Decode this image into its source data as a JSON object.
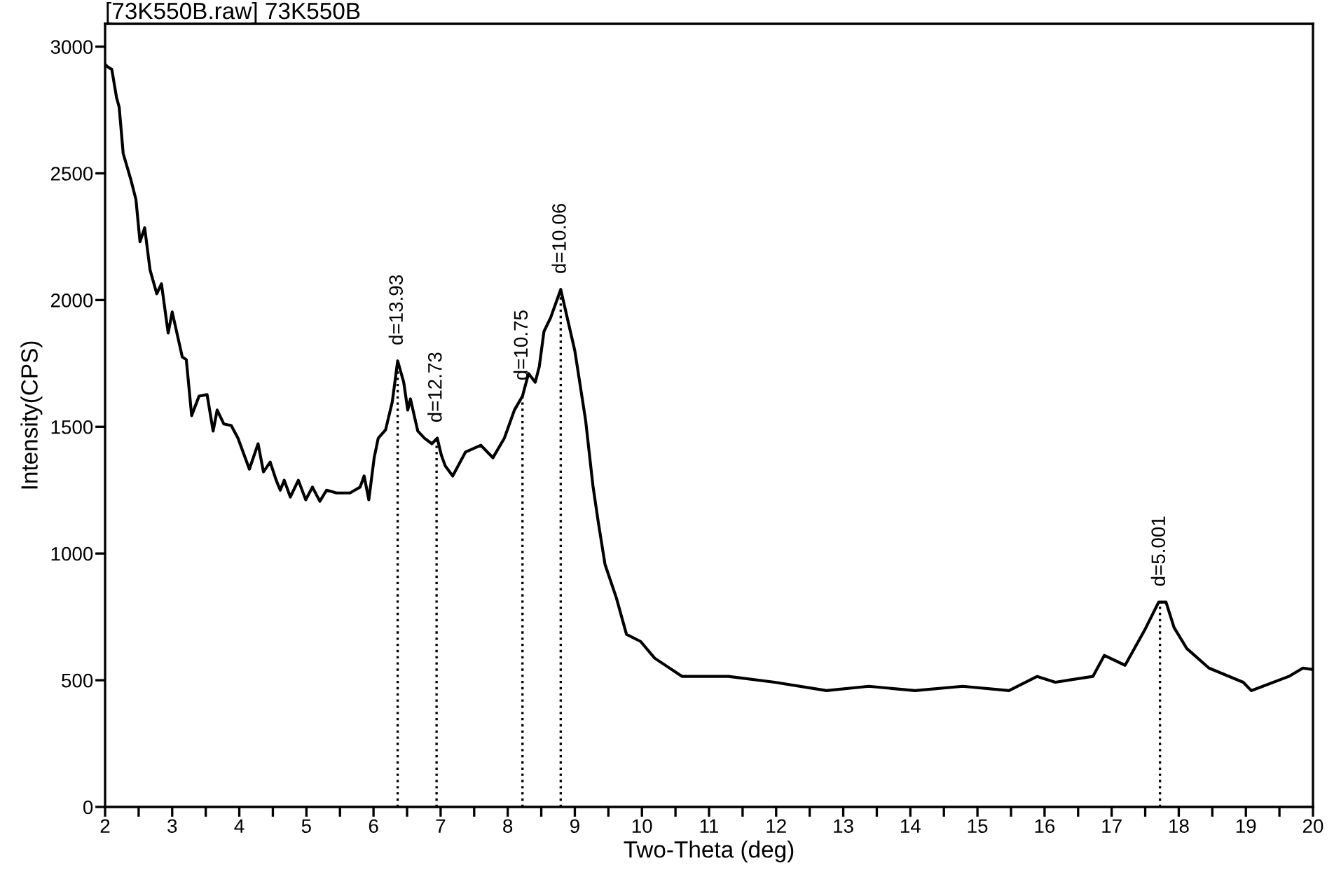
{
  "chart_data": {
    "type": "line",
    "title": "[73K550B.raw] 73K550B",
    "xlabel": "Two-Theta (deg)",
    "ylabel": "Intensity(CPS)",
    "x": [
      2.0,
      2.04,
      2.1,
      2.17,
      2.21,
      2.27,
      2.38,
      2.46,
      2.52,
      2.59,
      2.67,
      2.77,
      2.84,
      2.94,
      3.0,
      3.15,
      3.21,
      3.29,
      3.4,
      3.52,
      3.61,
      3.67,
      3.77,
      3.88,
      3.98,
      4.15,
      4.28,
      4.36,
      4.46,
      4.55,
      4.61,
      4.67,
      4.76,
      4.88,
      4.99,
      5.09,
      5.2,
      5.3,
      5.45,
      5.65,
      5.8,
      5.86,
      5.93,
      6.01,
      6.07,
      6.18,
      6.28,
      6.36,
      6.45,
      6.51,
      6.55,
      6.66,
      6.76,
      6.87,
      6.95,
      7.01,
      7.07,
      7.18,
      7.37,
      7.6,
      7.78,
      7.95,
      8.1,
      8.22,
      8.31,
      8.41,
      8.47,
      8.54,
      8.64,
      8.79,
      9.0,
      9.16,
      9.27,
      9.35,
      9.45,
      9.62,
      9.77,
      9.98,
      10.19,
      10.6,
      11.29,
      11.98,
      12.75,
      13.38,
      14.07,
      14.78,
      15.47,
      15.89,
      16.16,
      16.72,
      16.89,
      17.2,
      17.49,
      17.7,
      17.81,
      17.93,
      18.12,
      18.45,
      18.96,
      19.08,
      19.64,
      19.85,
      20.0
    ],
    "series": [
      {
        "color": "#000000",
        "values": [
          2930,
          2920,
          2910,
          2800,
          2761,
          2578,
          2479,
          2396,
          2230,
          2285,
          2119,
          2025,
          2064,
          1870,
          1953,
          1776,
          1765,
          1544,
          1621,
          1627,
          1483,
          1566,
          1511,
          1505,
          1455,
          1333,
          1433,
          1322,
          1361,
          1289,
          1250,
          1289,
          1223,
          1289,
          1212,
          1262,
          1206,
          1250,
          1239,
          1239,
          1262,
          1306,
          1212,
          1378,
          1455,
          1488,
          1599,
          1760,
          1676,
          1566,
          1610,
          1483,
          1455,
          1433,
          1455,
          1389,
          1345,
          1306,
          1400,
          1427,
          1378,
          1455,
          1566,
          1621,
          1710,
          1676,
          1737,
          1876,
          1931,
          2042,
          1800,
          1527,
          1267,
          1123,
          957,
          824,
          681,
          653,
          587,
          515,
          515,
          492,
          459,
          476,
          459,
          476,
          459,
          515,
          492,
          515,
          598,
          559,
          697,
          808,
          808,
          708,
          625,
          548,
          492,
          459,
          515,
          548,
          542
        ]
      }
    ],
    "xlim": [
      2,
      20
    ],
    "ylim": [
      0,
      3090
    ],
    "xticks": [
      2,
      {
        "value": 2.5,
        "label": null
      },
      3,
      {
        "value": 3.5,
        "label": null
      },
      4,
      {
        "value": 4.5,
        "label": null
      },
      5,
      {
        "value": 5.5,
        "label": null
      },
      6,
      {
        "value": 6.5,
        "label": null
      },
      7,
      {
        "value": 7.5,
        "label": null
      },
      8,
      {
        "value": 8.5,
        "label": null
      },
      9,
      {
        "value": 9.5,
        "label": null
      },
      10,
      {
        "value": 10.5,
        "label": null
      },
      11,
      {
        "value": 11.5,
        "label": null
      },
      12,
      {
        "value": 12.5,
        "label": null
      },
      13,
      {
        "value": 13.5,
        "label": null
      },
      14,
      {
        "value": 14.5,
        "label": null
      },
      15,
      {
        "value": 15.5,
        "label": null
      },
      16,
      {
        "value": 16.5,
        "label": null
      },
      17,
      {
        "value": 17.5,
        "label": null
      },
      18,
      {
        "value": 18.5,
        "label": null
      },
      19,
      {
        "value": 19.5,
        "label": null
      },
      20
    ],
    "yticks": [
      0,
      500,
      1000,
      1500,
      2000,
      2500,
      3000
    ],
    "annotations": [
      {
        "text": "d=13.93",
        "x": 6.36,
        "y": 1760
      },
      {
        "text": "d=12.73",
        "x": 6.94,
        "y": 1455
      },
      {
        "text": "d=10.75",
        "x": 8.22,
        "y": 1621
      },
      {
        "text": "d=10.06",
        "x": 8.79,
        "y": 2042
      },
      {
        "text": "d=5.001",
        "x": 17.72,
        "y": 808
      }
    ],
    "grid": false,
    "legend": false,
    "marker": "none",
    "line_style": "solid"
  }
}
